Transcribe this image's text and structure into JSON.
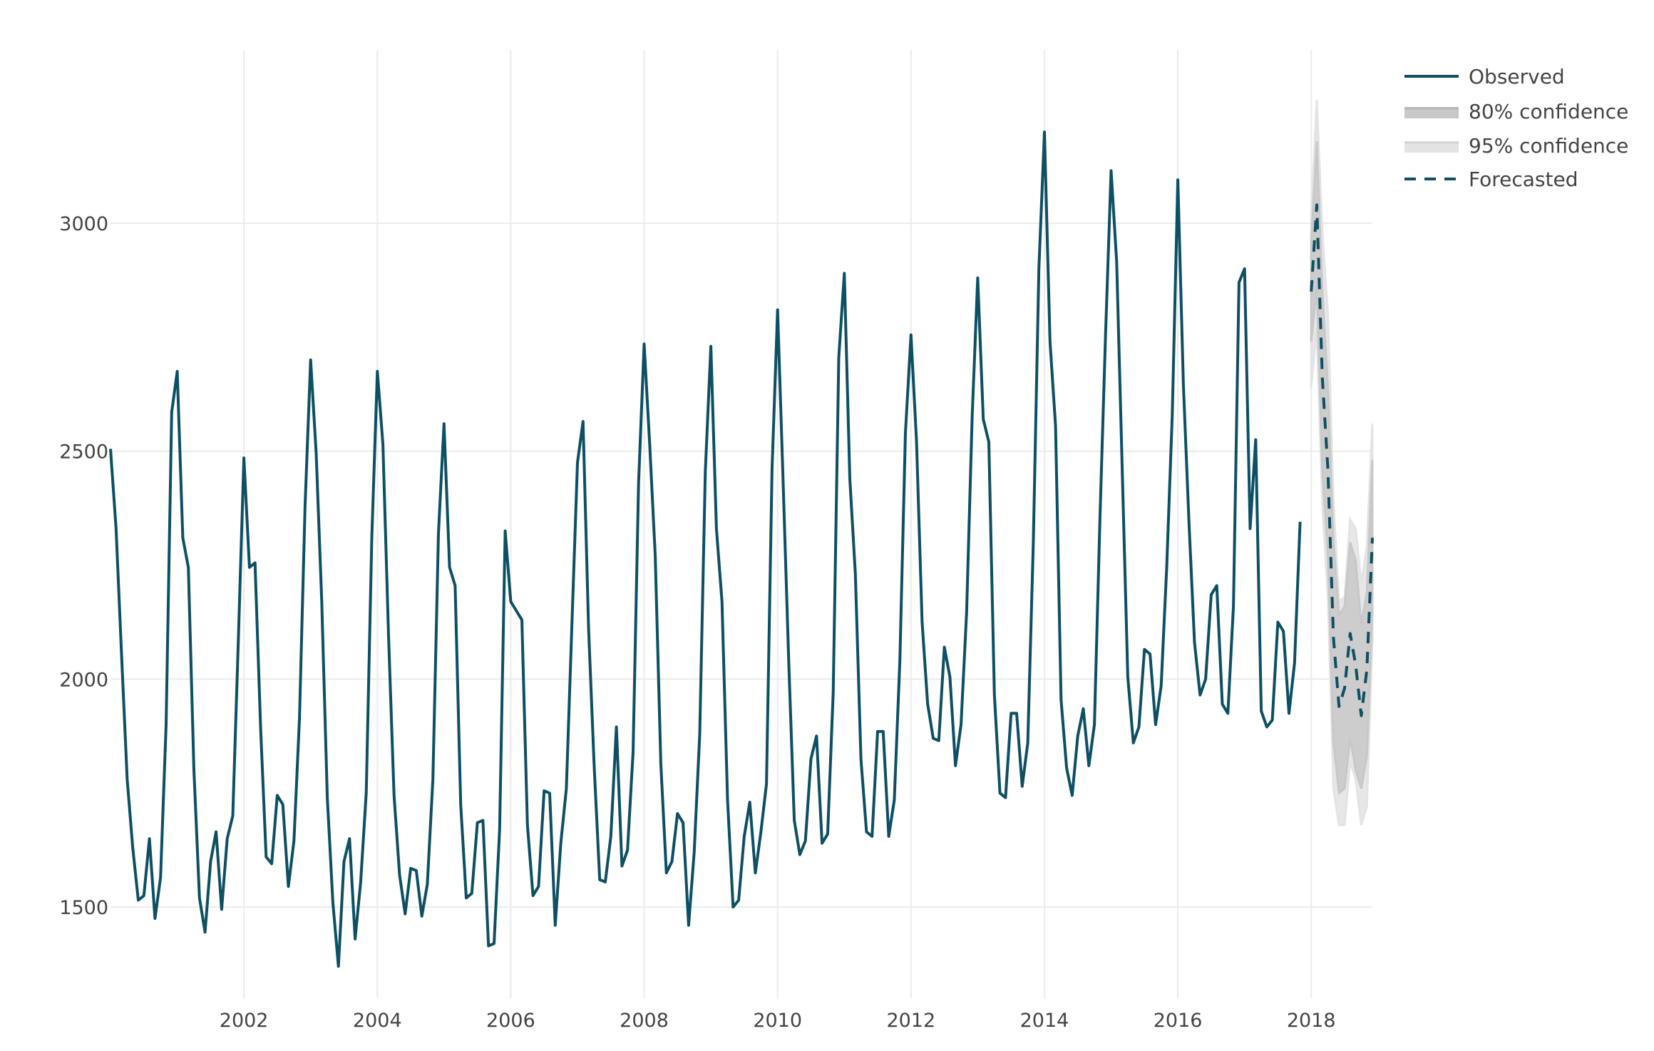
{
  "chart_data": {
    "type": "line",
    "x_start": "2000-01",
    "frequency": "monthly",
    "xlim": [
      "2000-01",
      "2018-12"
    ],
    "ylim": [
      1300,
      3380
    ],
    "x_ticks": [
      "2002",
      "2004",
      "2006",
      "2008",
      "2010",
      "2012",
      "2014",
      "2016",
      "2018"
    ],
    "y_ticks": [
      1500,
      2000,
      2500,
      3000
    ],
    "grid": true,
    "legend_position": "top-right",
    "series": [
      {
        "name": "Observed",
        "style": "solid",
        "color": "#0d4f63",
        "start": "2000-01",
        "values": [
          2505,
          2330,
          2050,
          1780,
          1630,
          1515,
          1525,
          1650,
          1475,
          1565,
          1900,
          2585,
          2675,
          2310,
          2245,
          1800,
          1520,
          1445,
          1600,
          1665,
          1495,
          1650,
          1700,
          2085,
          2485,
          2245,
          2255,
          1895,
          1610,
          1595,
          1745,
          1725,
          1545,
          1645,
          1915,
          2380,
          2700,
          2495,
          2170,
          1740,
          1510,
          1370,
          1600,
          1650,
          1430,
          1555,
          1750,
          2310,
          2675,
          2515,
          2100,
          1745,
          1570,
          1485,
          1585,
          1580,
          1480,
          1550,
          1780,
          2320,
          2560,
          2245,
          2205,
          1725,
          1520,
          1530,
          1685,
          1690,
          1415,
          1420,
          1670,
          2325,
          2170,
          2150,
          2130,
          1680,
          1525,
          1545,
          1755,
          1750,
          1460,
          1640,
          1760,
          2120,
          2475,
          2565,
          2110,
          1810,
          1560,
          1555,
          1655,
          1895,
          1590,
          1625,
          1840,
          2430,
          2735,
          2515,
          2270,
          1815,
          1575,
          1600,
          1705,
          1685,
          1460,
          1620,
          1880,
          2455,
          2730,
          2330,
          2170,
          1735,
          1500,
          1515,
          1655,
          1730,
          1575,
          1665,
          1770,
          2460,
          2810,
          2430,
          2040,
          1690,
          1615,
          1645,
          1825,
          1875,
          1640,
          1660,
          1970,
          2705,
          2890,
          2440,
          2230,
          1825,
          1665,
          1655,
          1885,
          1885,
          1655,
          1735,
          2040,
          2540,
          2755,
          2520,
          2125,
          1945,
          1870,
          1865,
          2070,
          2005,
          1810,
          1900,
          2145,
          2575,
          2880,
          2570,
          2520,
          1965,
          1750,
          1740,
          1925,
          1925,
          1765,
          1860,
          2300,
          2900,
          3200,
          2740,
          2555,
          1955,
          1805,
          1745,
          1875,
          1935,
          1810,
          1900,
          2355,
          2755,
          3115,
          2915,
          2460,
          2005,
          1860,
          1895,
          2065,
          2055,
          1900,
          1985,
          2245,
          2580,
          3095,
          2645,
          2345,
          2080,
          1965,
          2000,
          2185,
          2205,
          1945,
          1925,
          2160,
          2870,
          2900,
          2330,
          2525,
          1930,
          1895,
          1910,
          2125,
          2105,
          1925,
          2035,
          2345
        ]
      },
      {
        "name": "Forecasted",
        "style": "dashed",
        "color": "#0d4f63",
        "start": "2018-01",
        "values": [
          2850,
          3040,
          2660,
          2460,
          2090,
          1940,
          1980,
          2100,
          2030,
          1920,
          2020,
          2310
        ]
      }
    ],
    "bands": [
      {
        "name": "80% confidence",
        "color": "#c8c8c8",
        "start": "2018-01",
        "lower": [
          2740,
          2860,
          2460,
          2270,
          1860,
          1750,
          1760,
          1870,
          1800,
          1760,
          1830,
          2150
        ],
        "upper": [
          2960,
          3180,
          2850,
          2640,
          2300,
          2140,
          2160,
          2300,
          2260,
          2120,
          2190,
          2480
        ]
      },
      {
        "name": "95% confidence",
        "color": "#e3e3e3",
        "start": "2018-01",
        "lower": [
          2640,
          2770,
          2380,
          2180,
          1760,
          1680,
          1680,
          1820,
          1780,
          1680,
          1720,
          2090
        ],
        "upper": [
          3020,
          3270,
          2980,
          2800,
          2390,
          2170,
          2180,
          2350,
          2330,
          2210,
          2290,
          2560
        ]
      }
    ]
  },
  "legend": {
    "observed": "Observed",
    "conf80": "80% confidence",
    "conf95": "95% confidence",
    "forecast": "Forecasted"
  },
  "colors": {
    "line": "#0d4f63",
    "grid": "#ebebeb",
    "band80": "#c8c8c8",
    "band95": "#e3e3e3"
  }
}
